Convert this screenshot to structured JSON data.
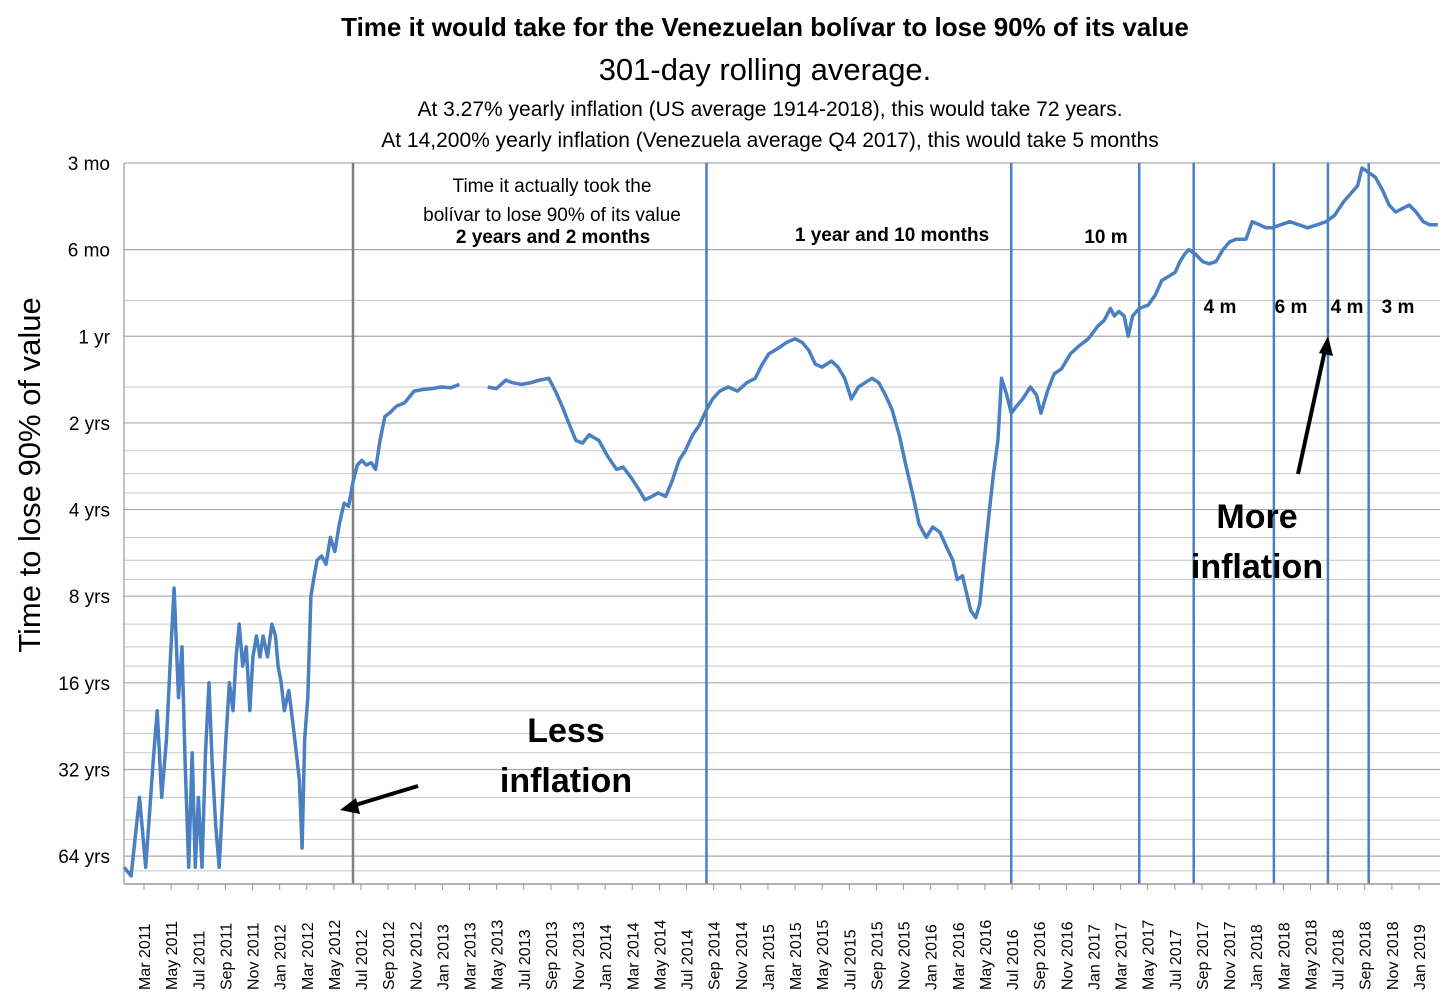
{
  "chart_data": {
    "type": "line",
    "title": "Time it would take for the Venezuelan bolívar to lose 90% of its value",
    "subtitle": "301-day rolling average.",
    "notes": [
      "At 3.27% yearly inflation (US average 1914-2018), this would take 72 years.",
      "At 14,200% yearly inflation (Venezuela average Q4 2017), this would take 5 months"
    ],
    "ylabel": "Time to lose 90% of value",
    "y_scale": "log",
    "y_inverted": true,
    "y_ticks": [
      {
        "label": "3 mo",
        "years": 0.25
      },
      {
        "label": "6 mo",
        "years": 0.5
      },
      {
        "label": "1 yr",
        "years": 1
      },
      {
        "label": "2 yrs",
        "years": 2
      },
      {
        "label": "4 yrs",
        "years": 4
      },
      {
        "label": "8 yrs",
        "years": 8
      },
      {
        "label": "16 yrs",
        "years": 16
      },
      {
        "label": "32 yrs",
        "years": 32
      },
      {
        "label": "64 yrs",
        "years": 64
      }
    ],
    "x_ticks": [
      "Mar 2011",
      "May 2011",
      "Jul 2011",
      "Sep 2011",
      "Nov 2011",
      "Jan 2012",
      "Mar 2012",
      "May 2012",
      "Jul 2012",
      "Sep 2012",
      "Nov 2012",
      "Jan 2013",
      "Mar 2013",
      "May 2013",
      "Jul 2013",
      "Sep 2013",
      "Nov 2013",
      "Jan 2014",
      "Mar 2014",
      "May 2014",
      "Jul 2014",
      "Sep 2014",
      "Nov 2014",
      "Jan 2015",
      "Mar 2015",
      "May 2015",
      "Jul 2015",
      "Sep 2015",
      "Nov 2015",
      "Jan 2016",
      "Mar 2016",
      "May 2016",
      "Jul 2016",
      "Sep 2016",
      "Nov 2016",
      "Jan 2017",
      "Mar 2017",
      "May 2017",
      "Jul 2017",
      "Sep 2017",
      "Nov 2017",
      "Jan 2018",
      "Mar 2018",
      "May 2018",
      "Jul 2018",
      "Sep 2018",
      "Nov 2018",
      "Jan 2019"
    ],
    "x_range": [
      "2011-01-25",
      "2019-03-15"
    ],
    "grid": true,
    "series": [
      {
        "color": "#4a7fc1",
        "points": [
          [
            "2011-01-25",
            70
          ],
          [
            "2011-02-10",
            75
          ],
          [
            "2011-03-01",
            40
          ],
          [
            "2011-03-15",
            70
          ],
          [
            "2011-04-01",
            30
          ],
          [
            "2011-04-10",
            20
          ],
          [
            "2011-04-20",
            40
          ],
          [
            "2011-05-01",
            25
          ],
          [
            "2011-05-10",
            13
          ],
          [
            "2011-05-18",
            7.5
          ],
          [
            "2011-05-28",
            18
          ],
          [
            "2011-06-05",
            12
          ],
          [
            "2011-06-12",
            30
          ],
          [
            "2011-06-20",
            70
          ],
          [
            "2011-06-28",
            28
          ],
          [
            "2011-07-05",
            70
          ],
          [
            "2011-07-12",
            40
          ],
          [
            "2011-07-20",
            70
          ],
          [
            "2011-07-28",
            28
          ],
          [
            "2011-08-05",
            16
          ],
          [
            "2011-08-12",
            30
          ],
          [
            "2011-08-20",
            50
          ],
          [
            "2011-08-28",
            70
          ],
          [
            "2011-09-05",
            40
          ],
          [
            "2011-09-12",
            25
          ],
          [
            "2011-09-20",
            16
          ],
          [
            "2011-09-28",
            20
          ],
          [
            "2011-10-05",
            13
          ],
          [
            "2011-10-12",
            10
          ],
          [
            "2011-10-20",
            14
          ],
          [
            "2011-10-28",
            12
          ],
          [
            "2011-11-05",
            20
          ],
          [
            "2011-11-12",
            13
          ],
          [
            "2011-11-20",
            11
          ],
          [
            "2011-11-28",
            13
          ],
          [
            "2011-12-05",
            11
          ],
          [
            "2011-12-15",
            13
          ],
          [
            "2011-12-25",
            10
          ],
          [
            "2012-01-02",
            11
          ],
          [
            "2012-01-08",
            14
          ],
          [
            "2012-01-15",
            16
          ],
          [
            "2012-01-22",
            20
          ],
          [
            "2012-02-01",
            17
          ],
          [
            "2012-02-10",
            22
          ],
          [
            "2012-02-18",
            28
          ],
          [
            "2012-02-25",
            35
          ],
          [
            "2012-03-02",
            60
          ],
          [
            "2012-03-08",
            25
          ],
          [
            "2012-03-15",
            18
          ],
          [
            "2012-03-22",
            8
          ],
          [
            "2012-03-28",
            7
          ],
          [
            "2012-04-05",
            6
          ],
          [
            "2012-04-15",
            5.8
          ],
          [
            "2012-04-25",
            6.2
          ],
          [
            "2012-05-05",
            5
          ],
          [
            "2012-05-15",
            5.6
          ],
          [
            "2012-05-25",
            4.5
          ],
          [
            "2012-06-05",
            3.8
          ],
          [
            "2012-06-15",
            3.9
          ],
          [
            "2012-06-25",
            3.2
          ],
          [
            "2012-07-05",
            2.8
          ],
          [
            "2012-07-15",
            2.7
          ],
          [
            "2012-07-25",
            2.8
          ],
          [
            "2012-08-05",
            2.75
          ],
          [
            "2012-08-15",
            2.9
          ],
          [
            "2012-08-25",
            2.3
          ],
          [
            "2012-09-05",
            1.9
          ],
          [
            "2012-09-15",
            1.85
          ],
          [
            "2012-10-01",
            1.75
          ],
          [
            "2012-10-20",
            1.7
          ],
          [
            "2012-11-10",
            1.55
          ],
          [
            "2012-12-01",
            1.53
          ],
          [
            "2012-12-20",
            1.52
          ],
          [
            "2013-01-10",
            1.5
          ],
          [
            "2013-02-01",
            1.51
          ],
          [
            "2013-02-20",
            1.47
          ]
        ]
      },
      {
        "color": "#4a7fc1",
        "points": [
          [
            "2013-04-25",
            1.5
          ],
          [
            "2013-05-15",
            1.52
          ],
          [
            "2013-06-05",
            1.42
          ],
          [
            "2013-06-20",
            1.45
          ],
          [
            "2013-07-10",
            1.47
          ],
          [
            "2013-08-01",
            1.45
          ],
          [
            "2013-08-20",
            1.42
          ],
          [
            "2013-09-10",
            1.4
          ],
          [
            "2013-09-25",
            1.55
          ],
          [
            "2013-10-10",
            1.75
          ],
          [
            "2013-10-25",
            2.0
          ],
          [
            "2013-11-10",
            2.3
          ],
          [
            "2013-11-25",
            2.35
          ],
          [
            "2013-12-10",
            2.2
          ],
          [
            "2014-01-01",
            2.3
          ],
          [
            "2014-01-20",
            2.6
          ],
          [
            "2014-02-10",
            2.9
          ],
          [
            "2014-02-25",
            2.85
          ],
          [
            "2014-03-15",
            3.1
          ],
          [
            "2014-04-01",
            3.4
          ],
          [
            "2014-04-15",
            3.7
          ],
          [
            "2014-05-01",
            3.6
          ],
          [
            "2014-05-15",
            3.5
          ],
          [
            "2014-06-01",
            3.6
          ],
          [
            "2014-06-15",
            3.2
          ],
          [
            "2014-07-01",
            2.7
          ],
          [
            "2014-07-15",
            2.5
          ],
          [
            "2014-08-01",
            2.2
          ],
          [
            "2014-08-15",
            2.05
          ],
          [
            "2014-09-01",
            1.8
          ],
          [
            "2014-09-15",
            1.65
          ],
          [
            "2014-10-01",
            1.55
          ],
          [
            "2014-10-20",
            1.5
          ],
          [
            "2014-11-10",
            1.55
          ],
          [
            "2014-12-01",
            1.45
          ],
          [
            "2014-12-20",
            1.4
          ],
          [
            "2015-01-05",
            1.25
          ],
          [
            "2015-01-20",
            1.15
          ],
          [
            "2015-02-10",
            1.1
          ],
          [
            "2015-03-01",
            1.05
          ],
          [
            "2015-03-20",
            1.02
          ],
          [
            "2015-04-05",
            1.05
          ],
          [
            "2015-04-20",
            1.12
          ],
          [
            "2015-05-05",
            1.25
          ],
          [
            "2015-05-20",
            1.28
          ],
          [
            "2015-06-10",
            1.22
          ],
          [
            "2015-06-25",
            1.28
          ],
          [
            "2015-07-10",
            1.4
          ],
          [
            "2015-07-25",
            1.65
          ],
          [
            "2015-08-10",
            1.5
          ],
          [
            "2015-08-25",
            1.45
          ],
          [
            "2015-09-10",
            1.4
          ],
          [
            "2015-09-25",
            1.45
          ],
          [
            "2015-10-10",
            1.6
          ],
          [
            "2015-10-25",
            1.8
          ],
          [
            "2015-11-10",
            2.2
          ],
          [
            "2015-11-25",
            2.8
          ],
          [
            "2015-12-10",
            3.5
          ],
          [
            "2015-12-25",
            4.5
          ],
          [
            "2016-01-10",
            5.0
          ],
          [
            "2016-01-25",
            4.6
          ],
          [
            "2016-02-10",
            4.8
          ],
          [
            "2016-02-25",
            5.4
          ],
          [
            "2016-03-10",
            6.0
          ],
          [
            "2016-03-20",
            7.0
          ],
          [
            "2016-04-01",
            6.8
          ],
          [
            "2016-04-10",
            7.8
          ],
          [
            "2016-04-20",
            9.0
          ],
          [
            "2016-05-01",
            9.5
          ],
          [
            "2016-05-10",
            8.5
          ],
          [
            "2016-05-20",
            6.0
          ],
          [
            "2016-06-01",
            4.0
          ],
          [
            "2016-06-10",
            3.0
          ],
          [
            "2016-06-20",
            2.3
          ],
          [
            "2016-06-28",
            1.4
          ],
          [
            "2016-07-10",
            1.6
          ],
          [
            "2016-07-20",
            1.85
          ],
          [
            "2016-08-01",
            1.75
          ],
          [
            "2016-08-15",
            1.65
          ],
          [
            "2016-09-01",
            1.5
          ],
          [
            "2016-09-15",
            1.6
          ],
          [
            "2016-09-25",
            1.85
          ],
          [
            "2016-10-10",
            1.55
          ],
          [
            "2016-10-25",
            1.35
          ],
          [
            "2016-11-10",
            1.3
          ],
          [
            "2016-12-01",
            1.15
          ],
          [
            "2016-12-20",
            1.08
          ],
          [
            "2017-01-10",
            1.02
          ],
          [
            "2017-02-01",
            0.92
          ],
          [
            "2017-02-15",
            0.88
          ],
          [
            "2017-03-01",
            0.8
          ],
          [
            "2017-03-10",
            0.85
          ],
          [
            "2017-03-20",
            0.82
          ],
          [
            "2017-04-01",
            0.85
          ],
          [
            "2017-04-10",
            1.0
          ],
          [
            "2017-04-20",
            0.85
          ],
          [
            "2017-05-05",
            0.8
          ],
          [
            "2017-05-25",
            0.78
          ],
          [
            "2017-06-10",
            0.72
          ],
          [
            "2017-06-25",
            0.64
          ],
          [
            "2017-07-10",
            0.62
          ],
          [
            "2017-07-25",
            0.6
          ],
          [
            "2017-08-05",
            0.55
          ],
          [
            "2017-08-15",
            0.52
          ],
          [
            "2017-08-25",
            0.5
          ],
          [
            "2017-09-10",
            0.52
          ],
          [
            "2017-09-25",
            0.55
          ],
          [
            "2017-10-10",
            0.56
          ],
          [
            "2017-10-25",
            0.55
          ],
          [
            "2017-11-10",
            0.5
          ],
          [
            "2017-11-25",
            0.47
          ],
          [
            "2017-12-10",
            0.46
          ],
          [
            "2018-01-01",
            0.46
          ],
          [
            "2018-01-15",
            0.4
          ],
          [
            "2018-02-01",
            0.41
          ],
          [
            "2018-02-15",
            0.42
          ],
          [
            "2018-03-01",
            0.42
          ],
          [
            "2018-03-20",
            0.41
          ],
          [
            "2018-04-10",
            0.4
          ],
          [
            "2018-05-01",
            0.41
          ],
          [
            "2018-05-20",
            0.42
          ],
          [
            "2018-06-10",
            0.41
          ],
          [
            "2018-07-01",
            0.4
          ],
          [
            "2018-07-20",
            0.38
          ],
          [
            "2018-08-10",
            0.34
          ],
          [
            "2018-08-25",
            0.32
          ],
          [
            "2018-09-10",
            0.3
          ],
          [
            "2018-09-20",
            0.26
          ],
          [
            "2018-10-05",
            0.27
          ],
          [
            "2018-10-20",
            0.28
          ],
          [
            "2018-11-05",
            0.31
          ],
          [
            "2018-11-20",
            0.35
          ],
          [
            "2018-12-05",
            0.37
          ],
          [
            "2018-12-20",
            0.36
          ],
          [
            "2019-01-05",
            0.35
          ],
          [
            "2019-01-20",
            0.37
          ],
          [
            "2019-02-05",
            0.4
          ],
          [
            "2019-02-20",
            0.41
          ],
          [
            "2019-03-10",
            0.41
          ]
        ]
      }
    ],
    "boundaries": [
      {
        "date": "2012-06-25",
        "color": "#7f7f7f"
      },
      {
        "date": "2014-09-01",
        "color": "#4a7fc1"
      },
      {
        "date": "2016-07-20",
        "color": "#4a7fc1"
      },
      {
        "date": "2017-05-05",
        "color": "#4a7fc1"
      },
      {
        "date": "2017-09-05",
        "color": "#4a7fc1"
      },
      {
        "date": "2018-03-05",
        "color": "#4a7fc1"
      },
      {
        "date": "2018-07-05",
        "color": "#4a7fc1"
      },
      {
        "date": "2018-10-05",
        "color": "#4a7fc1"
      }
    ],
    "annotations": {
      "header_lines": [
        "Time it actually took the",
        "bolívar to lose 90% of its value"
      ],
      "periods": [
        "2 years and 2 months",
        "1 year and 10 months",
        "10 m",
        "4 m",
        "6 m",
        "4 m",
        "3 m"
      ],
      "less_inflation": [
        "Less",
        "inflation"
      ],
      "more_inflation": [
        "More",
        "inflation"
      ]
    }
  }
}
